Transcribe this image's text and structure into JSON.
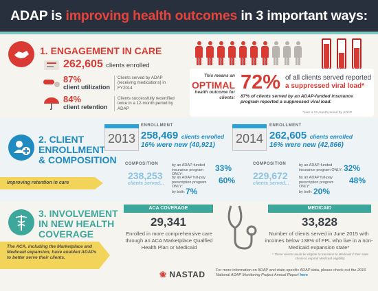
{
  "header": {
    "prefix": "ADAP is ",
    "highlight": "improving health outcomes",
    "suffix": " in 3 important ways:"
  },
  "section1": {
    "title": "1. ENGAGEMENT IN CARE",
    "enrolled_value": "262,605",
    "enrolled_label": "clients enrolled",
    "utilization_pct": "87%",
    "utilization_label": "client utilization",
    "utilization_note": "Clients served by ADAP (receiving medications) in FY2014",
    "retention_pct": "84%",
    "retention_label": "client retention",
    "retention_note": "Clients successfully recertified twice in a 12-month period by ADAP",
    "outcome_lead": "This means an",
    "outcome_word": "OPTIMAL",
    "outcome_tail": "health outcome for clients:",
    "suppressed_pct": "72%",
    "suppressed_text_a": "of all clients served reported",
    "suppressed_text_b": "a suppressed viral load*",
    "suppressed_sub": "87% of clients served by an ADAP-funded insurance program reported a suppressed viral load.",
    "footnote": "*over a 12-month period by ADAP",
    "people_filled": 7,
    "people_total": 10,
    "tube_levels": [
      0.85,
      0.55,
      0.7
    ]
  },
  "section2": {
    "title_l1": "2. CLIENT",
    "title_l2": "ENROLLMENT",
    "title_l3": "& COMPOSITION",
    "side_note": "Improving retention in care",
    "y2013": {
      "year": "2013",
      "enroll_label": "ENROLLMENT",
      "enrolled": "258,469",
      "enrolled_label": "clients enrolled",
      "new_line": "16% were new (40,921)",
      "comp_label": "COMPOSITION",
      "served": "238,253",
      "served_label": "clients served...",
      "ins_label": "by an ADAP-funded insurance program ONLY:",
      "ins_pct": "33%",
      "full_label": "by an ADAP full-pay prescription program ONLY:",
      "full_pct": "60%",
      "both_label": "by both:",
      "both_pct": "7%"
    },
    "y2014": {
      "year": "2014",
      "enroll_label": "ENROLLMENT",
      "enrolled": "262,605",
      "enrolled_label": "clients enrolled",
      "new_line": "16% were new (42,866)",
      "comp_label": "COMPOSITION",
      "served": "229,672",
      "served_label": "clients served...",
      "ins_label": "by an ADAP-funded insurance program ONLY:",
      "ins_pct": "32%",
      "full_label": "by an ADAP full-pay prescription program ONLY:",
      "full_pct": "48%",
      "both_label": "by both:",
      "both_pct": "20%"
    }
  },
  "section3": {
    "title_l1": "3. INVOLVEMENT",
    "title_l2": "IN NEW HEALTH",
    "title_l3": "COVERAGE",
    "side_note": "The ACA, including the Marketplace and Medicaid expansion, have enabled ADAPs to better serve their clients.",
    "aca_label": "ACA COVERAGE",
    "aca_value": "29,341",
    "aca_text": "Enrolled in more comprehensive care through an ACA Marketplace Qualfied Health Plan or Medicaid",
    "medicaid_label": "MEDICAID",
    "medicaid_value": "33,828",
    "medicaid_text": "Number of clients served in June 2015 with incomes below 138% of FPL who live in a non-Medicaid expansion state*",
    "medicaid_foot": "* These clients would be eligible to transition to Medicaid if their state chose to expand Medicaid eligibility."
  },
  "footer": {
    "brand": "NASTAD",
    "text_a": "For more information on ADAP and state-specific ADAP data, please check out",
    "text_b": "the 2016 National ADAP Monitoring Project Annual Report",
    "link": "here"
  },
  "colors": {
    "red": "#d93a33",
    "blue": "#1f8bc0",
    "teal": "#3da79c",
    "navy": "#27303c",
    "yellow": "#f3d45a"
  }
}
